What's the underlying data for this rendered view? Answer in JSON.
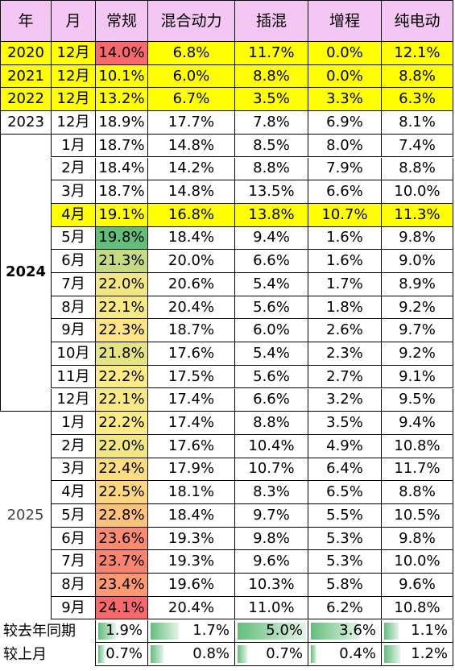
{
  "header": [
    "年",
    "月",
    "常规",
    "混合动力",
    "插混",
    "增程",
    "纯电动"
  ],
  "yearly_rows": [
    {
      "year": "2020",
      "month": "12月",
      "values": [
        "14.0%",
        "6.8%",
        "11.7%",
        "0.0%",
        "12.1%"
      ],
      "highlight": true
    },
    {
      "year": "2021",
      "month": "12月",
      "values": [
        "10.1%",
        "6.0%",
        "8.8%",
        "0.0%",
        "8.8%"
      ],
      "highlight": true
    },
    {
      "year": "2022",
      "month": "12月",
      "values": [
        "13.2%",
        "6.7%",
        "3.5%",
        "3.3%",
        "6.3%"
      ],
      "highlight": true
    },
    {
      "year": "2023",
      "month": "12月",
      "values": [
        "18.9%",
        "17.7%",
        "7.8%",
        "6.9%",
        "8.1%"
      ],
      "highlight": false
    }
  ],
  "groups": [
    {
      "year": "2024",
      "rows": [
        {
          "month": "1月",
          "values": [
            "18.7%",
            "14.8%",
            "8.5%",
            "8.0%",
            "7.4%"
          ],
          "highlight": false
        },
        {
          "month": "2月",
          "values": [
            "18.4%",
            "14.2%",
            "8.8%",
            "7.9%",
            "8.8%"
          ],
          "highlight": false
        },
        {
          "month": "3月",
          "values": [
            "18.7%",
            "14.8%",
            "13.5%",
            "6.6%",
            "10.0%"
          ],
          "highlight": false
        },
        {
          "month": "4月",
          "values": [
            "19.1%",
            "16.8%",
            "13.8%",
            "10.7%",
            "11.3%"
          ],
          "highlight": true
        },
        {
          "month": "5月",
          "values": [
            "19.8%",
            "18.4%",
            "9.4%",
            "1.6%",
            "9.8%"
          ],
          "highlight": false
        },
        {
          "month": "6月",
          "values": [
            "21.3%",
            "20.0%",
            "6.6%",
            "1.6%",
            "9.0%"
          ],
          "highlight": false
        },
        {
          "month": "7月",
          "values": [
            "22.0%",
            "20.6%",
            "5.4%",
            "1.7%",
            "8.9%"
          ],
          "highlight": false
        },
        {
          "month": "8月",
          "values": [
            "22.1%",
            "20.4%",
            "5.6%",
            "1.8%",
            "9.2%"
          ],
          "highlight": false
        },
        {
          "month": "9月",
          "values": [
            "22.3%",
            "18.7%",
            "6.0%",
            "2.6%",
            "9.7%"
          ],
          "highlight": false
        },
        {
          "month": "10月",
          "values": [
            "21.8%",
            "17.6%",
            "5.4%",
            "2.3%",
            "9.2%"
          ],
          "highlight": false
        },
        {
          "month": "11月",
          "values": [
            "22.2%",
            "17.5%",
            "5.6%",
            "2.7%",
            "9.1%"
          ],
          "highlight": false
        },
        {
          "month": "12月",
          "values": [
            "22.1%",
            "17.4%",
            "6.6%",
            "3.2%",
            "9.5%"
          ],
          "highlight": false
        }
      ]
    },
    {
      "year": "2025",
      "rows": [
        {
          "month": "1月",
          "values": [
            "22.2%",
            "17.4%",
            "8.8%",
            "3.5%",
            "9.4%"
          ],
          "highlight": false
        },
        {
          "month": "2月",
          "values": [
            "22.0%",
            "17.6%",
            "10.4%",
            "4.9%",
            "10.8%"
          ],
          "highlight": false
        },
        {
          "month": "3月",
          "values": [
            "22.4%",
            "17.9%",
            "10.7%",
            "6.4%",
            "11.7%"
          ],
          "highlight": false
        },
        {
          "month": "4月",
          "values": [
            "22.5%",
            "18.1%",
            "8.3%",
            "6.5%",
            "8.8%"
          ],
          "highlight": false
        },
        {
          "month": "5月",
          "values": [
            "22.8%",
            "18.4%",
            "9.7%",
            "5.5%",
            "10.5%"
          ],
          "highlight": false
        },
        {
          "month": "6月",
          "values": [
            "23.6%",
            "19.3%",
            "9.8%",
            "5.3%",
            "9.8%"
          ],
          "highlight": false
        },
        {
          "month": "7月",
          "values": [
            "23.7%",
            "19.3%",
            "9.6%",
            "5.3%",
            "10.0%"
          ],
          "highlight": false
        },
        {
          "month": "8月",
          "values": [
            "23.4%",
            "19.6%",
            "10.3%",
            "5.8%",
            "9.6%"
          ],
          "highlight": false
        },
        {
          "month": "9月",
          "values": [
            "24.1%",
            "20.4%",
            "11.0%",
            "6.2%",
            "10.8%"
          ],
          "highlight": false
        }
      ]
    }
  ],
  "comparisons": [
    {
      "label": "较去年同期",
      "values": [
        "1.9%",
        "1.7%",
        "5.0%",
        "3.6%",
        "1.1%"
      ]
    },
    {
      "label": "较上月",
      "values": [
        "0.7%",
        "0.8%",
        "0.7%",
        "0.4%",
        "1.2%"
      ]
    }
  ],
  "colors": {
    "header_bg": "#f4c6f4",
    "highlight_bg": "#ffff00",
    "scale_low": "#63be7b",
    "scale_mid": "#ffeb84",
    "scale_high": "#f8696b",
    "databar": "#63be7b"
  }
}
